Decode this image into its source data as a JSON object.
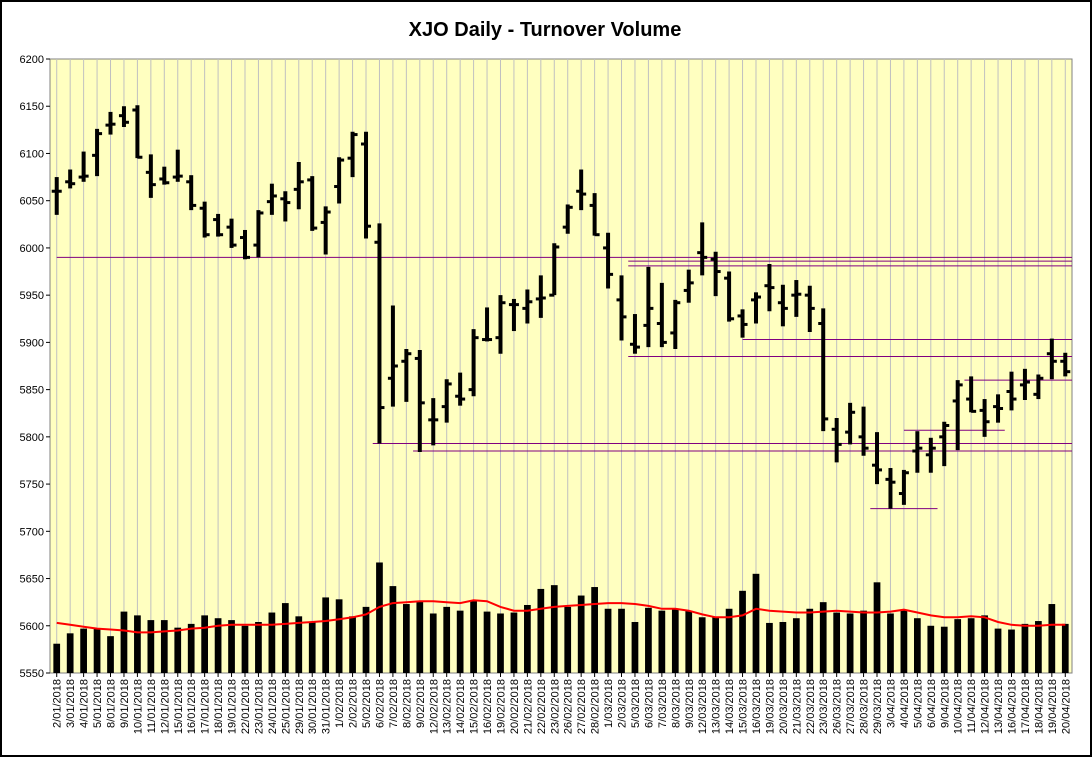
{
  "chart_data": {
    "type": "bar",
    "title": "XJO Daily - Turnover Volume",
    "xlabel": "",
    "ylabel": "",
    "ylim": [
      5550,
      6200
    ],
    "yticks": [
      5550,
      5600,
      5650,
      5700,
      5750,
      5800,
      5850,
      5900,
      5950,
      6000,
      6050,
      6100,
      6150,
      6200
    ],
    "grid": true,
    "legend": "none",
    "colors": {
      "plot_background": "#ffffc0",
      "bars": "#000000",
      "moving_average": "#ff0000",
      "support_resistance": "#800080",
      "grid": "#c0c0c0"
    },
    "categories": [
      "2/01/2018",
      "3/01/2018",
      "4/01/2018",
      "5/01/2018",
      "8/01/2018",
      "9/01/2018",
      "10/01/2018",
      "11/01/2018",
      "12/01/2018",
      "15/01/2018",
      "16/01/2018",
      "17/01/2018",
      "18/01/2018",
      "19/01/2018",
      "22/01/2018",
      "23/01/2018",
      "24/01/2018",
      "25/01/2018",
      "29/01/2018",
      "30/01/2018",
      "31/01/2018",
      "1/02/2018",
      "2/02/2018",
      "5/02/2018",
      "6/02/2018",
      "7/02/2018",
      "8/02/2018",
      "9/02/2018",
      "12/02/2018",
      "13/02/2018",
      "14/02/2018",
      "15/02/2018",
      "16/02/2018",
      "19/02/2018",
      "20/02/2018",
      "21/02/2018",
      "22/02/2018",
      "23/02/2018",
      "26/02/2018",
      "27/02/2018",
      "28/02/2018",
      "1/03/2018",
      "2/03/2018",
      "5/03/2018",
      "6/03/2018",
      "7/03/2018",
      "8/03/2018",
      "9/03/2018",
      "12/03/2018",
      "13/03/2018",
      "14/03/2018",
      "15/03/2018",
      "16/03/2018",
      "19/03/2018",
      "20/03/2018",
      "21/03/2018",
      "22/03/2018",
      "23/03/2018",
      "26/03/2018",
      "27/03/2018",
      "28/03/2018",
      "29/03/2018",
      "3/04/2018",
      "4/04/2018",
      "5/04/2018",
      "6/04/2018",
      "9/04/2018",
      "10/04/2018",
      "11/04/2018",
      "12/04/2018",
      "13/04/2018",
      "16/04/2018",
      "17/04/2018",
      "18/04/2018",
      "19/04/2018",
      "20/04/2018"
    ],
    "x_tick_labels": [
      "2/01/2018",
      "3/01/2018",
      "4/01/2018",
      "5/01/2018",
      "8/01/2018",
      "9/01/2018",
      "10/01/2018",
      "11/01/2018",
      "12/01/2018",
      "15/01/2018",
      "16/01/2018",
      "17/01/2018",
      "18/01/2018",
      "19/01/2018",
      "22/01/2018",
      "23/01/2018",
      "24/01/2018",
      "25/01/2018",
      "29/01/2018",
      "30/01/2018",
      "31/01/2018",
      "1/02/2018",
      "2/02/2018",
      "5/02/2018",
      "6/02/2018",
      "7/02/2018",
      "8/02/2018",
      "9/02/2018",
      "12/02/2018",
      "13/02/2018",
      "14/02/2018",
      "15/02/2018",
      "16/02/2018",
      "19/02/2018",
      "20/02/2018",
      "21/02/2018",
      "22/02/2018",
      "23/02/2018",
      "26/02/2018",
      "27/02/2018",
      "28/02/2018",
      "1/03/2018",
      "2/03/2018",
      "5/03/2018",
      "6/03/2018",
      "7/03/2018",
      "8/03/2018",
      "9/03/2018",
      "12/03/2018",
      "13/03/2018",
      "14/03/2018",
      "15/03/2018",
      "16/03/2018",
      "19/03/2018",
      "20/03/2018",
      "21/03/2018",
      "22/03/2018",
      "23/03/2018",
      "26/03/2018",
      "27/03/2018",
      "28/03/2018",
      "29/03/2018",
      "3/04/2018",
      "4/04/2018",
      "5/04/2018",
      "6/04/2018",
      "9/04/2018",
      "10/04/2018",
      "11/04/2018",
      "12/04/2018",
      "13/04/2018",
      "16/04/2018",
      "17/04/2018",
      "18/04/2018",
      "19/04/2018",
      "20/04/2018"
    ],
    "ohlc": [
      [
        6060,
        6075,
        6035,
        6060
      ],
      [
        6070,
        6083,
        6063,
        6068
      ],
      [
        6075,
        6102,
        6070,
        6076
      ],
      [
        6098,
        6126,
        6076,
        6121
      ],
      [
        6130,
        6144,
        6120,
        6131
      ],
      [
        6140,
        6150,
        6128,
        6133
      ],
      [
        6146,
        6151,
        6095,
        6096
      ],
      [
        6080,
        6099,
        6053,
        6067
      ],
      [
        6073,
        6086,
        6067,
        6069
      ],
      [
        6075,
        6104,
        6070,
        6076
      ],
      [
        6070,
        6077,
        6040,
        6045
      ],
      [
        6042,
        6049,
        6011,
        6014
      ],
      [
        6030,
        6036,
        6012,
        6014
      ],
      [
        6022,
        6031,
        6000,
        6003
      ],
      [
        6011,
        6019,
        5988,
        5990
      ],
      [
        6003,
        6040,
        5990,
        6037
      ],
      [
        6049,
        6068,
        6035,
        6055
      ],
      [
        6052,
        6060,
        6028,
        6048
      ],
      [
        6062,
        6091,
        6041,
        6070
      ],
      [
        6072,
        6076,
        6018,
        6021
      ],
      [
        6027,
        6044,
        5993,
        6038
      ],
      [
        6065,
        6096,
        6047,
        6093
      ],
      [
        6095,
        6123,
        6075,
        6120
      ],
      [
        6110,
        6123,
        6010,
        6023
      ],
      [
        6006,
        6026,
        5793,
        5831
      ],
      [
        5862,
        5939,
        5832,
        5875
      ],
      [
        5880,
        5893,
        5837,
        5888
      ],
      [
        5883,
        5892,
        5784,
        5836
      ],
      [
        5818,
        5841,
        5791,
        5818
      ],
      [
        5832,
        5861,
        5815,
        5856
      ],
      [
        5843,
        5868,
        5833,
        5840
      ],
      [
        5850,
        5914,
        5843,
        5905
      ],
      [
        5903,
        5937,
        5901,
        5903
      ],
      [
        5905,
        5950,
        5888,
        5942
      ],
      [
        5940,
        5946,
        5912,
        5940
      ],
      [
        5936,
        5956,
        5920,
        5943
      ],
      [
        5946,
        5971,
        5926,
        5947
      ],
      [
        5950,
        6005,
        5950,
        6001
      ],
      [
        6022,
        6046,
        6015,
        6043
      ],
      [
        6060,
        6083,
        6040,
        6057
      ],
      [
        6045,
        6058,
        6013,
        6014
      ],
      [
        6000,
        6016,
        5957,
        5972
      ],
      [
        5945,
        5971,
        5902,
        5927
      ],
      [
        5898,
        5930,
        5888,
        5895
      ],
      [
        5918,
        5980,
        5895,
        5936
      ],
      [
        5920,
        5963,
        5895,
        5900
      ],
      [
        5910,
        5945,
        5893,
        5942
      ],
      [
        5955,
        5977,
        5942,
        5963
      ],
      [
        5995,
        6027,
        5971,
        5990
      ],
      [
        5988,
        5996,
        5949,
        5975
      ],
      [
        5968,
        5975,
        5922,
        5925
      ],
      [
        5928,
        5935,
        5905,
        5919
      ],
      [
        5945,
        5953,
        5920,
        5948
      ],
      [
        5960,
        5983,
        5933,
        5958
      ],
      [
        5942,
        5961,
        5917,
        5936
      ],
      [
        5950,
        5966,
        5927,
        5951
      ],
      [
        5950,
        5960,
        5911,
        5936
      ],
      [
        5920,
        5936,
        5806,
        5819
      ],
      [
        5808,
        5820,
        5773,
        5792
      ],
      [
        5805,
        5836,
        5792,
        5826
      ],
      [
        5800,
        5832,
        5780,
        5788
      ],
      [
        5770,
        5805,
        5750,
        5765
      ],
      [
        5755,
        5767,
        5724,
        5752
      ],
      [
        5740,
        5765,
        5728,
        5762
      ],
      [
        5785,
        5806,
        5762,
        5788
      ],
      [
        5781,
        5799,
        5762,
        5788
      ],
      [
        5800,
        5816,
        5769,
        5812
      ],
      [
        5838,
        5860,
        5786,
        5855
      ],
      [
        5840,
        5864,
        5826,
        5827
      ],
      [
        5828,
        5840,
        5800,
        5816
      ],
      [
        5832,
        5845,
        5815,
        5830
      ],
      [
        5848,
        5869,
        5828,
        5840
      ],
      [
        5855,
        5872,
        5839,
        5858
      ],
      [
        5845,
        5866,
        5840,
        5862
      ],
      [
        5888,
        5904,
        5861,
        5880
      ],
      [
        5880,
        5889,
        5864,
        5869
      ]
    ],
    "volume": [
      5581,
      5592,
      5597,
      5597,
      5589,
      5615,
      5611,
      5606,
      5606,
      5598,
      5602,
      5611,
      5608,
      5606,
      5600,
      5604,
      5614,
      5624,
      5610,
      5604,
      5630,
      5628,
      5610,
      5620,
      5667,
      5642,
      5623,
      5626,
      5613,
      5620,
      5616,
      5626,
      5615,
      5613,
      5614,
      5622,
      5639,
      5643,
      5620,
      5632,
      5641,
      5618,
      5618,
      5604,
      5619,
      5616,
      5618,
      5616,
      5609,
      5609,
      5618,
      5637,
      5655,
      5603,
      5604,
      5608,
      5618,
      5625,
      5614,
      5613,
      5616,
      5646,
      5613,
      5617,
      5608,
      5600,
      5599,
      5607,
      5608,
      5611,
      5597,
      5596,
      5602,
      5605,
      5623,
      5602
    ],
    "moving_average": [
      5603,
      5601,
      5599,
      5597,
      5596,
      5595,
      5593,
      5593,
      5594,
      5595,
      5597,
      5598,
      5600,
      5601,
      5601,
      5601,
      5601,
      5602,
      5603,
      5604,
      5605,
      5607,
      5609,
      5612,
      5620,
      5624,
      5625,
      5626,
      5626,
      5625,
      5624,
      5627,
      5626,
      5620,
      5616,
      5616,
      5618,
      5620,
      5621,
      5622,
      5623,
      5624,
      5624,
      5623,
      5621,
      5618,
      5618,
      5616,
      5612,
      5609,
      5609,
      5611,
      5618,
      5616,
      5615,
      5614,
      5614,
      5615,
      5616,
      5615,
      5614,
      5614,
      5615,
      5617,
      5614,
      5611,
      5609,
      5609,
      5610,
      5609,
      5604,
      5601,
      5600,
      5600,
      5601,
      5601
    ],
    "horizontal_lines": [
      {
        "y": 5990,
        "from": 0,
        "to": 75
      },
      {
        "y": 5981,
        "from": 42.5,
        "to": 75
      },
      {
        "y": 5986,
        "from": 42.5,
        "to": 75
      },
      {
        "y": 5903,
        "from": 51,
        "to": 75
      },
      {
        "y": 5885,
        "from": 42.5,
        "to": 75
      },
      {
        "y": 5860,
        "from": 67.5,
        "to": 75
      },
      {
        "y": 5807,
        "from": 63,
        "to": 70
      },
      {
        "y": 5793,
        "from": 23.5,
        "to": 75
      },
      {
        "y": 5785,
        "from": 26.5,
        "to": 75
      },
      {
        "y": 5724,
        "from": 60.5,
        "to": 65
      }
    ]
  }
}
